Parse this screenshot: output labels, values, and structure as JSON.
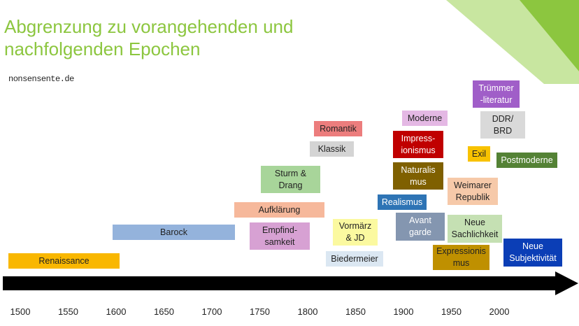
{
  "slide": {
    "title_line1": "Abgrenzung zu vorangehenden und",
    "title_line2": "nachfolgenden Epochen",
    "credit": "nonsensente.de"
  },
  "colors": {
    "title": "#8cc63f",
    "deco_light": "#c8e6a0",
    "deco_dark": "#8cc63f",
    "axis": "#000000"
  },
  "axis": {
    "ticks": [
      "1500",
      "1550",
      "1600",
      "1650",
      "1700",
      "1750",
      "1800",
      "1850",
      "1900",
      "1950",
      "2000"
    ]
  },
  "epochs": {
    "renaissance": {
      "label": "Renaissance",
      "color": "#f9b700",
      "text_color": "#222222"
    },
    "barock": {
      "label": "Barock",
      "color": "#94b3dc",
      "text_color": "#222222"
    },
    "aufklaerung": {
      "label": "Aufklärung",
      "color": "#f6b89b",
      "text_color": "#222222"
    },
    "empfindsamkeit": {
      "label": "Empfind-\nsamkeit",
      "color": "#d7a1d3",
      "text_color": "#222222"
    },
    "sturm_drang": {
      "label": "Sturm &\nDrang",
      "color": "#a8d59a",
      "text_color": "#222222"
    },
    "klassik": {
      "label": "Klassik",
      "color": "#d4d4d4",
      "text_color": "#222222"
    },
    "romantik": {
      "label": "Romantik",
      "color": "#ec7d7d",
      "text_color": "#222222"
    },
    "vormaerz": {
      "label": "Vormärz\n& JD",
      "color": "#fbf9a0",
      "text_color": "#222222"
    },
    "biedermeier": {
      "label": "Biedermeier",
      "color": "#dbe7f2",
      "text_color": "#222222"
    },
    "realismus": {
      "label": "Realismus",
      "color": "#2e74b5",
      "text_color": "#ffffff"
    },
    "impressionismus": {
      "label": "Impress-\nionismus",
      "color": "#c00000",
      "text_color": "#ffffff"
    },
    "moderne": {
      "label": "Moderne",
      "color": "#e4b8e4",
      "text_color": "#222222"
    },
    "naturalismus": {
      "label": "Naturalis\nmus",
      "color": "#7f6000",
      "text_color": "#ffffff"
    },
    "avantgarde": {
      "label": "Avant\ngarde",
      "color": "#8496b0",
      "text_color": "#ffffff"
    },
    "weimarer": {
      "label": "Weimarer\nRepublik",
      "color": "#f6c9a9",
      "text_color": "#222222"
    },
    "neue_sachlichkeit": {
      "label": "Neue\nSachlichkeit",
      "color": "#c5e0b3",
      "text_color": "#222222"
    },
    "expressionismus": {
      "label": "Expressionis\nmus",
      "color": "#bf9000",
      "text_color": "#222222"
    },
    "truemmer": {
      "label": "Trümmer\n-literatur",
      "color": "#a05ec8",
      "text_color": "#ffffff"
    },
    "ddr_brd": {
      "label": "DDR/\nBRD",
      "color": "#d9d9d9",
      "text_color": "#222222"
    },
    "exil": {
      "label": "Exil",
      "color": "#f8c200",
      "text_color": "#222222"
    },
    "postmoderne": {
      "label": "Postmoderne",
      "color": "#548235",
      "text_color": "#ffffff"
    },
    "neue_subjektivitaet": {
      "label": "Neue\nSubjektivität",
      "color": "#0b3eb6",
      "text_color": "#ffffff"
    }
  }
}
